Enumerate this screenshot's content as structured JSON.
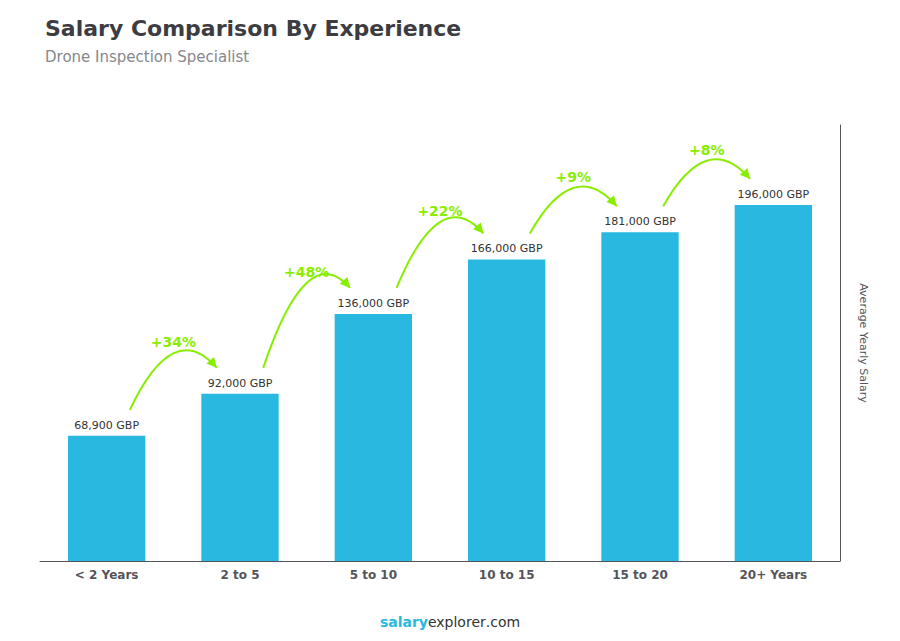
{
  "chart_data": {
    "type": "bar",
    "title": "Salary Comparison By Experience",
    "subtitle": "Drone Inspection Specialist",
    "categories": [
      "< 2 Years",
      "2 to 5",
      "5 to 10",
      "10 to 15",
      "15 to 20",
      "20+ Years"
    ],
    "values": [
      68900,
      92000,
      136000,
      166000,
      181000,
      196000
    ],
    "value_labels": [
      "68,900 GBP",
      "92,000 GBP",
      "136,000 GBP",
      "166,000 GBP",
      "181,000 GBP",
      "196,000 GBP"
    ],
    "data_labels": true,
    "color": "#29b8e0",
    "ylabel": "Average Yearly Salary",
    "ylim": [
      0,
      240000
    ],
    "tick_labels": "x",
    "grid": false,
    "annotations": [
      {
        "text": "+34%",
        "color": "#88ee00"
      },
      {
        "text": "+48%",
        "color": "#88ee00"
      },
      {
        "text": "+22%",
        "color": "#88ee00"
      },
      {
        "text": "+9%",
        "color": "#88ee00"
      },
      {
        "text": "+8%",
        "color": "#88ee00"
      }
    ],
    "footer": [
      {
        "text": "salary",
        "color": "#29b8e0"
      },
      {
        "text": "explorer"
      },
      {
        "text": ".com"
      }
    ]
  }
}
